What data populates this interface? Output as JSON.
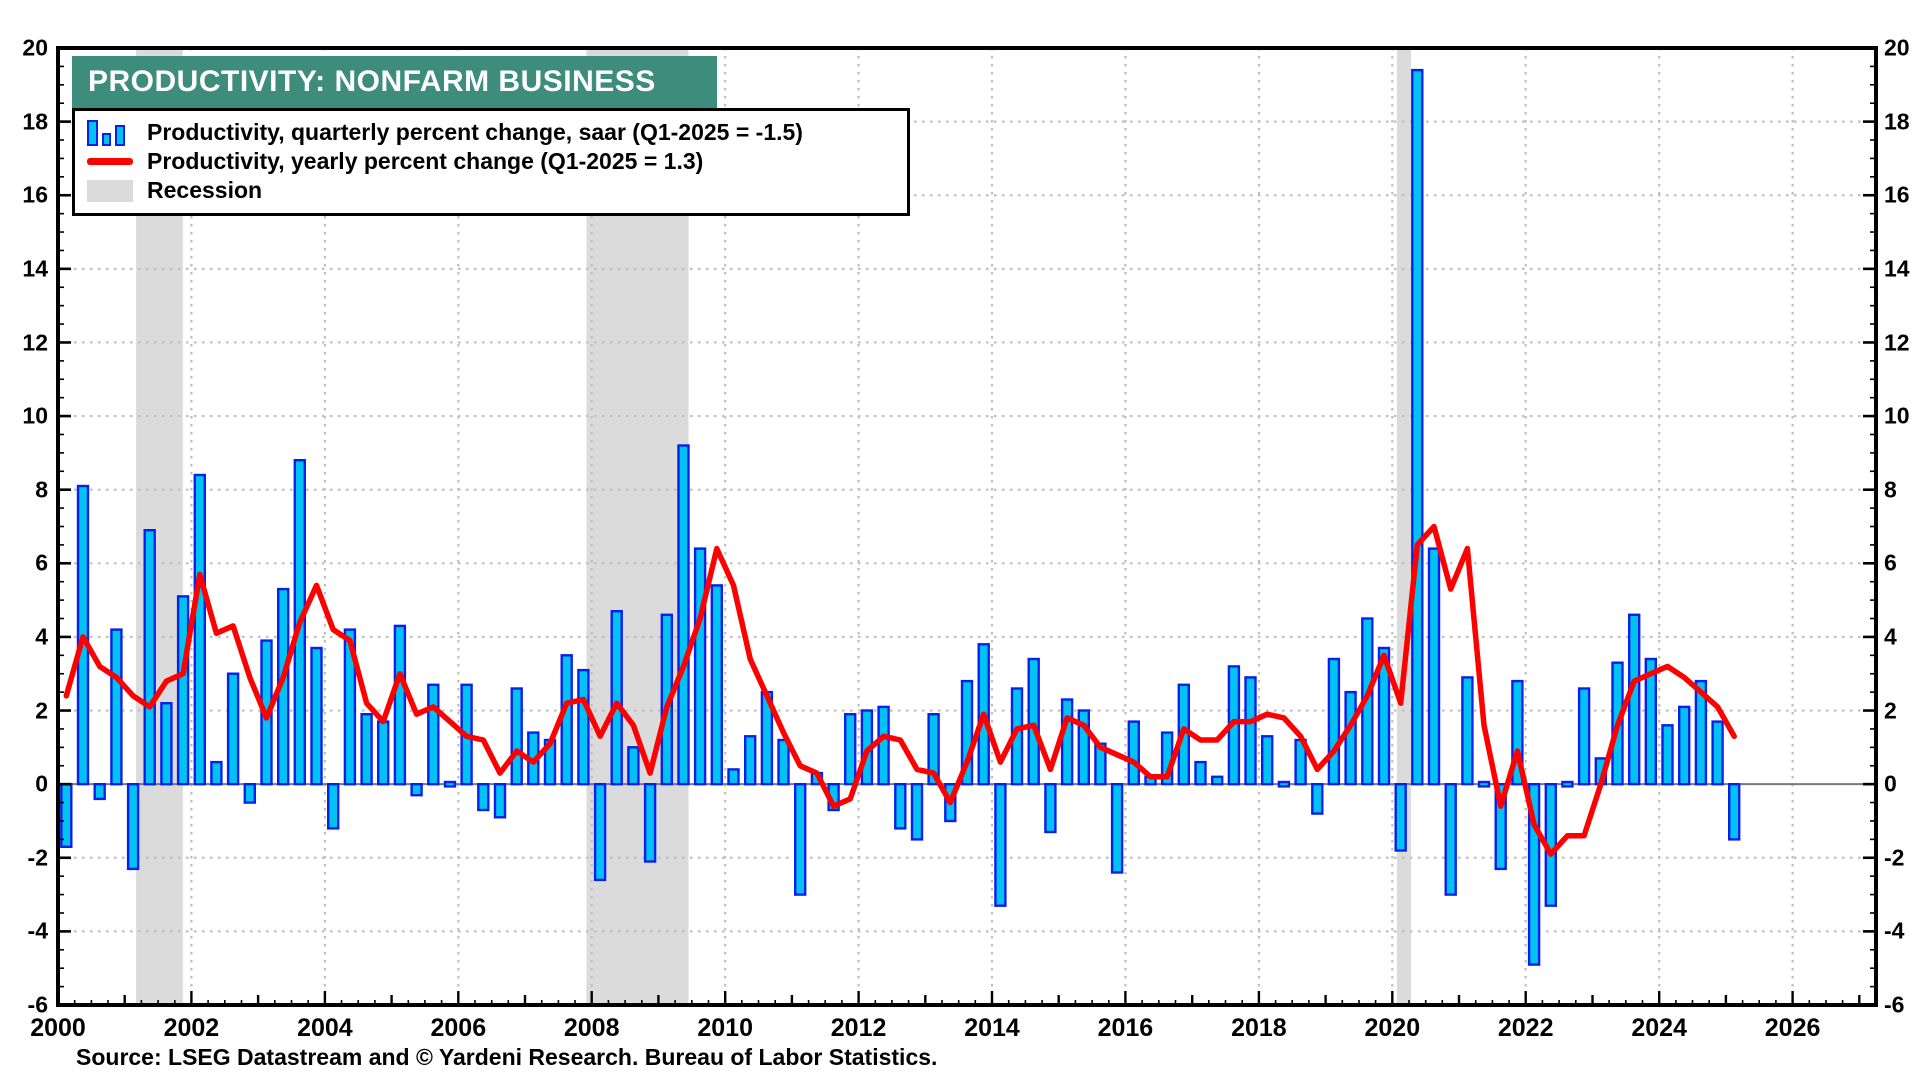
{
  "header": {
    "title": "PRODUCTIVITY: NONFARM BUSINESS"
  },
  "footer": {
    "source": "Source: LSEG Datastream and © Yardeni Research. Bureau of Labor Statistics."
  },
  "legend": {
    "items": [
      {
        "icon": "quarterly-bars-icon",
        "label": "Productivity, quarterly percent change, saar (Q1-2025 = -1.5)"
      },
      {
        "icon": "yearly-line-icon",
        "label": "Productivity, yearly percent change (Q1-2025 = 1.3)"
      },
      {
        "icon": "recession-swatch-icon",
        "label": "Recession"
      }
    ]
  },
  "colors": {
    "title_bg": "#3E8C7B",
    "bar_fill": "#00C2F5",
    "bar_stroke": "#0B1FEA",
    "line_red": "#FE0000",
    "recession_fill": "#DBDBDB",
    "grid": "#BFBFBF",
    "zero_line": "#7A7A7A",
    "axis": "#000000"
  },
  "chart_data": {
    "type": "bar+line combo, quarterly time series",
    "title": "PRODUCTIVITY: NONFARM BUSINESS",
    "x_domain": [
      2000,
      2027.25
    ],
    "ylim": [
      -6,
      20
    ],
    "y_tick_step": 2,
    "x_tick_years": [
      2000,
      2002,
      2004,
      2006,
      2008,
      2010,
      2012,
      2014,
      2016,
      2018,
      2020,
      2022,
      2024,
      2026
    ],
    "x_tick_labels": [
      "2000",
      "2002",
      "2004",
      "2006",
      "2008",
      "2010",
      "2012",
      "2014",
      "2016",
      "2018",
      "2020",
      "2022",
      "2024",
      "2026"
    ],
    "grid": "dotted horizontal every 2 units, dotted vertical every 2 years, solid zero line",
    "legend_position": "top-left inside plot",
    "start_quarter": "2000-Q1",
    "end_quarter": "2025-Q1",
    "series": [
      {
        "name": "Productivity, quarterly percent change, saar",
        "type": "bar",
        "last_point": "Q1-2025 = -1.5",
        "values": [
          -1.7,
          8.1,
          -0.4,
          4.2,
          -2.3,
          6.9,
          2.2,
          5.1,
          8.4,
          0.6,
          3.0,
          -0.5,
          3.9,
          5.3,
          8.8,
          3.7,
          -1.2,
          4.2,
          1.9,
          1.7,
          4.3,
          -0.3,
          2.7,
          -0.1,
          2.7,
          -0.7,
          -0.9,
          2.6,
          1.4,
          1.2,
          3.5,
          3.1,
          -2.6,
          4.7,
          1.0,
          -2.1,
          4.6,
          9.2,
          6.4,
          5.4,
          0.4,
          1.3,
          2.5,
          1.2,
          -3.0,
          0.3,
          -0.7,
          1.9,
          2.0,
          2.1,
          -1.2,
          -1.5,
          1.9,
          -1.0,
          2.8,
          3.8,
          -3.3,
          2.6,
          3.4,
          -1.3,
          2.3,
          2.0,
          1.1,
          -2.4,
          1.7,
          0.2,
          1.4,
          2.7,
          0.6,
          0.2,
          3.2,
          2.9,
          1.3,
          -0.1,
          1.2,
          -0.8,
          3.4,
          2.5,
          4.5,
          3.7,
          -1.8,
          19.4,
          6.4,
          -3.0,
          2.9,
          0.1,
          -2.3,
          2.8,
          -4.9,
          -3.3,
          -0.1,
          2.6,
          0.7,
          3.3,
          4.6,
          3.4,
          1.6,
          2.1,
          2.8,
          1.7,
          -1.5
        ]
      },
      {
        "name": "Productivity, yearly percent change",
        "type": "line",
        "last_point": "Q1-2025 = 1.3",
        "values": [
          2.4,
          4.0,
          3.2,
          2.9,
          2.4,
          2.1,
          2.8,
          3.0,
          5.7,
          4.1,
          4.3,
          2.9,
          1.8,
          2.9,
          4.4,
          5.4,
          4.2,
          3.9,
          2.2,
          1.7,
          3.0,
          1.9,
          2.1,
          1.7,
          1.3,
          1.2,
          0.3,
          0.9,
          0.6,
          1.1,
          2.2,
          2.3,
          1.3,
          2.2,
          1.6,
          0.3,
          2.1,
          3.2,
          4.5,
          6.4,
          5.4,
          3.4,
          2.4,
          1.4,
          0.5,
          0.3,
          -0.6,
          -0.4,
          0.9,
          1.3,
          1.2,
          0.4,
          0.3,
          -0.5,
          0.6,
          1.9,
          0.6,
          1.5,
          1.6,
          0.4,
          1.8,
          1.6,
          1.0,
          0.8,
          0.6,
          0.2,
          0.2,
          1.5,
          1.2,
          1.2,
          1.7,
          1.7,
          1.9,
          1.8,
          1.3,
          0.4,
          0.9,
          1.6,
          2.4,
          3.5,
          2.2,
          6.5,
          7.0,
          5.3,
          6.4,
          1.6,
          -0.6,
          0.9,
          -1.1,
          -1.9,
          -1.4,
          -1.4,
          0.0,
          1.6,
          2.8,
          3.0,
          3.2,
          2.9,
          2.5,
          2.1,
          1.3
        ]
      }
    ],
    "recessions": [
      {
        "start": 2001.17,
        "end": 2001.87
      },
      {
        "start": 2007.92,
        "end": 2009.45
      },
      {
        "start": 2020.07,
        "end": 2020.28
      }
    ]
  }
}
